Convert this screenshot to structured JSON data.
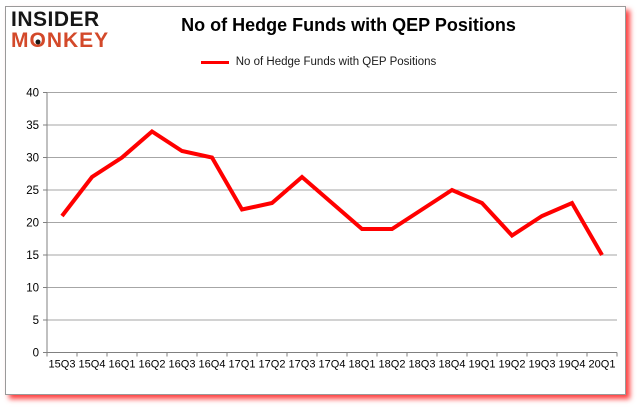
{
  "logo": {
    "line1": "INSIDER",
    "line2_m": "M",
    "line2_o": "O",
    "line2_rest": "NKEY"
  },
  "header": {
    "title": "No of Hedge Funds with QEP Positions"
  },
  "legend": {
    "label": "No of Hedge Funds with QEP Positions",
    "swatch_color": "#ff0000"
  },
  "chart_data": {
    "type": "line",
    "title": "No of Hedge Funds with QEP Positions",
    "categories": [
      "15Q3",
      "15Q4",
      "16Q1",
      "16Q2",
      "16Q3",
      "16Q4",
      "17Q1",
      "17Q2",
      "17Q3",
      "17Q4",
      "18Q1",
      "18Q2",
      "18Q3",
      "18Q4",
      "19Q1",
      "19Q2",
      "19Q3",
      "19Q4",
      "20Q1"
    ],
    "series": [
      {
        "name": "No of Hedge Funds with QEP Positions",
        "color": "#ff0000",
        "values": [
          21,
          27,
          30,
          34,
          31,
          30,
          22,
          23,
          27,
          23,
          19,
          19,
          22,
          25,
          23,
          18,
          21,
          23,
          15
        ]
      }
    ],
    "ylim": [
      0,
      40
    ],
    "y_tick_step": 5,
    "y_tick_labels": [
      "0",
      "5",
      "10",
      "15",
      "20",
      "25",
      "30",
      "35",
      "40"
    ],
    "grid": true,
    "legend_position": "top-center"
  },
  "colors": {
    "line_red": "#ff0000",
    "logo_red": "#d3492a",
    "grid_gray": "#a6a6a6",
    "axis_gray": "#808080",
    "text_black": "#000000",
    "card_border": "#9a9a9a",
    "card_shadow_red": "#ff0000"
  }
}
